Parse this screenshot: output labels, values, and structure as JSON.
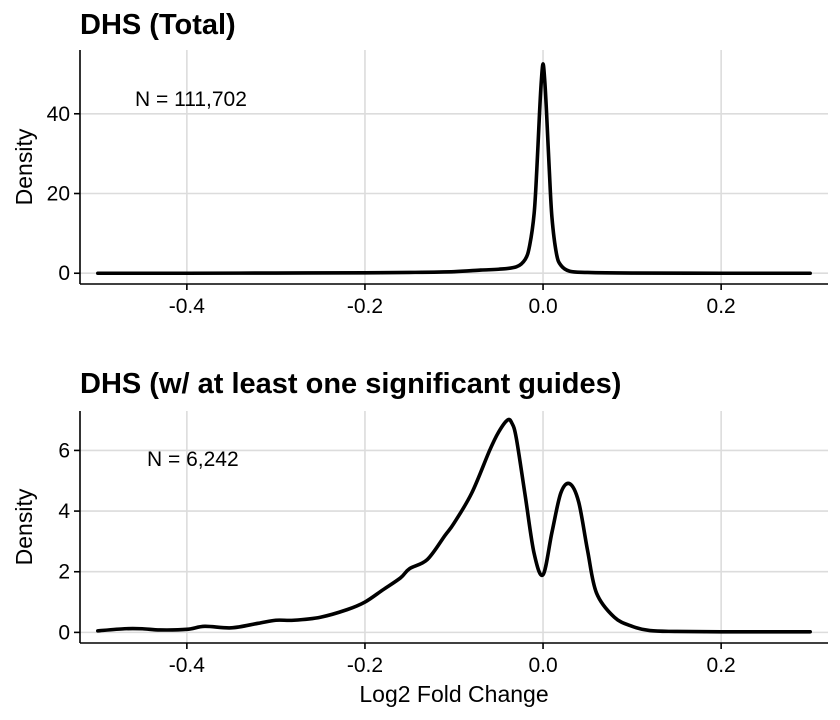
{
  "chart_data": [
    {
      "type": "line",
      "title": "DHS (Total)",
      "ylabel": "Density",
      "xlabel": "",
      "annotation": "N = 111,702",
      "grid": true,
      "xlim": [
        -0.52,
        0.32
      ],
      "ylim": [
        -2.7,
        56
      ],
      "x_ticks": [
        -0.4,
        -0.2,
        0.0,
        0.2
      ],
      "x_tick_labels": [
        "-0.4",
        "-0.2",
        "0.0",
        "0.2"
      ],
      "y_ticks": [
        0,
        20,
        40
      ],
      "y_tick_labels": [
        "0",
        "20",
        "40"
      ],
      "series": [
        {
          "x": [
            -0.5,
            -0.4,
            -0.3,
            -0.2,
            -0.15,
            -0.1,
            -0.07,
            -0.05,
            -0.03,
            -0.02,
            -0.015,
            -0.01,
            -0.007,
            -0.004,
            -0.002,
            0.0,
            0.002,
            0.004,
            0.007,
            0.01,
            0.015,
            0.02,
            0.03,
            0.05,
            0.1,
            0.2,
            0.3
          ],
          "y": [
            0,
            0,
            0.05,
            0.1,
            0.2,
            0.4,
            0.8,
            1.0,
            1.6,
            3.5,
            7,
            15,
            26,
            40,
            48,
            52.5,
            48,
            40,
            26,
            14,
            5,
            2,
            0.5,
            0.2,
            0.05,
            0,
            0
          ]
        }
      ]
    },
    {
      "type": "line",
      "title": "DHS (w/ at least one significant guides)",
      "ylabel": "Density",
      "xlabel": "Log2 Fold Change",
      "annotation": "N = 6,242",
      "grid": true,
      "xlim": [
        -0.52,
        0.32
      ],
      "ylim": [
        -0.35,
        7.3
      ],
      "x_ticks": [
        -0.4,
        -0.2,
        0.0,
        0.2
      ],
      "x_tick_labels": [
        "-0.4",
        "-0.2",
        "0.0",
        "0.2"
      ],
      "y_ticks": [
        0,
        2,
        4,
        6
      ],
      "y_tick_labels": [
        "0",
        "2",
        "4",
        "6"
      ],
      "series": [
        {
          "x": [
            -0.5,
            -0.47,
            -0.45,
            -0.43,
            -0.4,
            -0.38,
            -0.35,
            -0.32,
            -0.3,
            -0.28,
            -0.25,
            -0.22,
            -0.2,
            -0.18,
            -0.16,
            -0.15,
            -0.13,
            -0.11,
            -0.1,
            -0.08,
            -0.06,
            -0.05,
            -0.04,
            -0.035,
            -0.03,
            -0.02,
            -0.01,
            0.0,
            0.01,
            0.02,
            0.03,
            0.04,
            0.05,
            0.06,
            0.08,
            0.1,
            0.12,
            0.15,
            0.2,
            0.25,
            0.3
          ],
          "y": [
            0.05,
            0.12,
            0.12,
            0.08,
            0.1,
            0.2,
            0.15,
            0.3,
            0.4,
            0.4,
            0.5,
            0.75,
            1.0,
            1.4,
            1.8,
            2.1,
            2.4,
            3.2,
            3.6,
            4.6,
            6.0,
            6.6,
            7.0,
            6.9,
            6.4,
            4.5,
            2.6,
            1.9,
            3.3,
            4.6,
            4.9,
            4.3,
            2.7,
            1.3,
            0.5,
            0.2,
            0.06,
            0.03,
            0.02,
            0.02,
            0.02
          ]
        }
      ]
    }
  ]
}
